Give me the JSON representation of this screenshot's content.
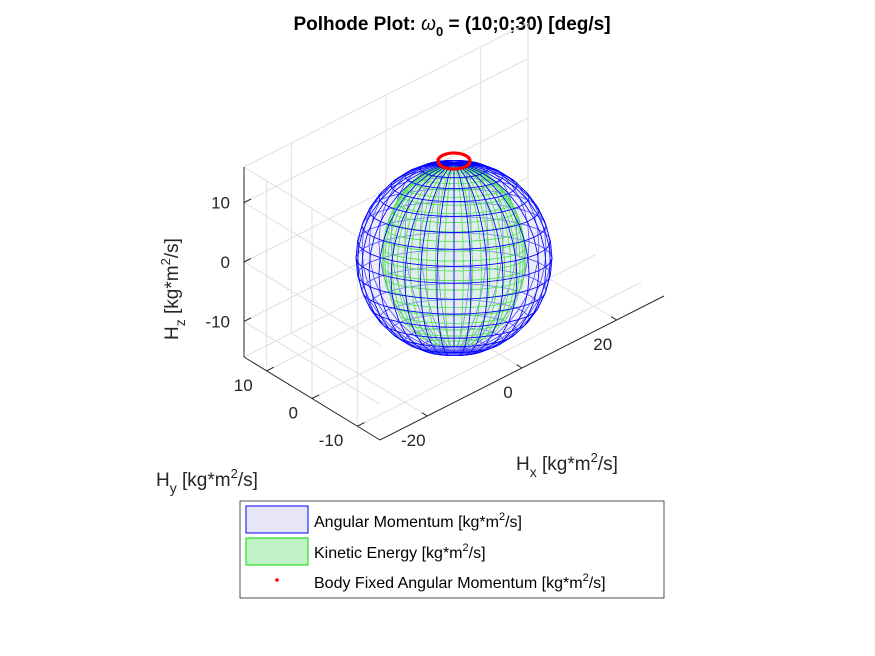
{
  "chart_data": {
    "type": "3d-surface",
    "title": {
      "prefix": "Polhode Plot: ",
      "symbol": "ω",
      "subscript": "0",
      "suffix": " = (10;0;30) [deg/s]"
    },
    "axes": {
      "x": {
        "label_base": "H",
        "label_sub": "x",
        "label_pre": " [kg*m",
        "label_sup": "2",
        "label_post": "/s]",
        "ticks": [
          -20,
          0,
          20
        ],
        "range": [
          -30,
          30
        ]
      },
      "y": {
        "label_base": "H",
        "label_sub": "y",
        "label_pre": " [kg*m",
        "label_sup": "2",
        "label_post": "/s]",
        "ticks": [
          -10,
          0,
          10
        ],
        "range": [
          -15,
          15
        ]
      },
      "z": {
        "label_base": "H",
        "label_sub": "z",
        "label_pre": " [kg*m",
        "label_sup": "2",
        "label_post": "/s]",
        "ticks": [
          -10,
          0,
          10
        ],
        "range": [
          -16,
          16
        ]
      },
      "grid": true
    },
    "series": [
      {
        "name_pre": "Angular Momentum [kg*m",
        "name_sup": "2",
        "name_post": "/s]",
        "kind": "sphere-mesh",
        "edge_color": "#0000ff",
        "face_color": "#e6e6f7"
      },
      {
        "name_pre": "Kinetic Energy [kg*m",
        "name_sup": "2",
        "name_post": "/s]",
        "kind": "ellipsoid-mesh",
        "edge_color": "#00dd00",
        "face_color": "#bff2c4"
      },
      {
        "name_pre": "Body Fixed Angular Momentum [kg*m",
        "name_sup": "2",
        "name_post": "/s]",
        "kind": "points",
        "color": "#ff0000"
      }
    ],
    "legend": {
      "location": "bottom-center"
    }
  }
}
